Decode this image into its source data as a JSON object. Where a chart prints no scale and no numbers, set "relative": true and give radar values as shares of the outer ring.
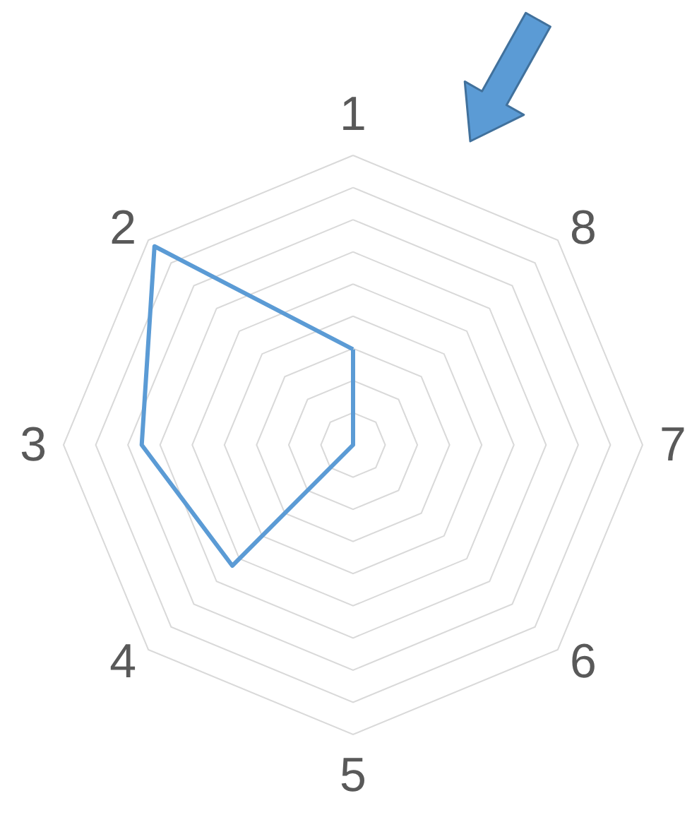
{
  "chart_data": {
    "type": "radar",
    "relative": true,
    "grid": true,
    "categories": [
      "1",
      "8",
      "7",
      "6",
      "5",
      "4",
      "3",
      "2"
    ],
    "series": [
      {
        "color": "#5b9bd5",
        "values": [
          0.33,
          0,
          0,
          0,
          0,
          0.59,
          0.73,
          0.97
        ]
      }
    ]
  }
}
